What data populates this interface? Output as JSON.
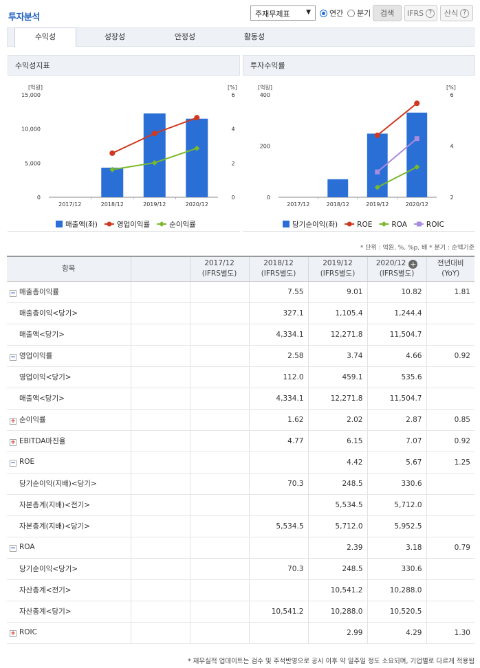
{
  "header": {
    "title": "투자분석",
    "select_value": "주재무제표",
    "radio_annual": "연간",
    "radio_quarter": "분기",
    "search_btn": "검색",
    "ifrs_btn": "IFRS",
    "formula_btn": "산식"
  },
  "tabs": [
    "수익성",
    "성장성",
    "안정성",
    "활동성"
  ],
  "chart_left_title": "수익성지표",
  "chart_right_title": "투자수익률",
  "chart_data": [
    {
      "type": "bar",
      "title": "수익성지표",
      "categories": [
        "2017/12",
        "2018/12",
        "2019/12",
        "2020/12"
      ],
      "y_left_unit": "[억원]",
      "y_right_unit": "[%]",
      "y_left_ticks": [
        "15,000",
        "10,000",
        "5,000",
        "0"
      ],
      "y_right_ticks": [
        "6",
        "4",
        "2",
        "0"
      ],
      "ylim_left": [
        0,
        15000
      ],
      "ylim_right": [
        0,
        6
      ],
      "series": [
        {
          "name": "매출액(좌)",
          "kind": "bar",
          "axis": "left",
          "color": "#2a6fd6",
          "values": [
            null,
            4334.1,
            12271.8,
            11504.7
          ]
        },
        {
          "name": "영업이익률",
          "kind": "line",
          "axis": "right",
          "color": "#d0391f",
          "values": [
            null,
            2.58,
            3.74,
            4.66
          ]
        },
        {
          "name": "순이익률",
          "kind": "line",
          "axis": "right",
          "color": "#7ab92a",
          "values": [
            null,
            1.62,
            2.02,
            2.87
          ]
        }
      ],
      "legend": "bottom"
    },
    {
      "type": "bar",
      "title": "투자수익률",
      "categories": [
        "2017/12",
        "2018/12",
        "2019/12",
        "2020/12"
      ],
      "y_left_unit": "[억원]",
      "y_right_unit": "[%]",
      "y_left_ticks": [
        "400",
        "200",
        "0"
      ],
      "y_right_ticks": [
        "6",
        "4",
        "2"
      ],
      "ylim_left": [
        0,
        400
      ],
      "ylim_right": [
        2,
        6
      ],
      "series": [
        {
          "name": "당기순이익(좌)",
          "kind": "bar",
          "axis": "left",
          "color": "#2a6fd6",
          "values": [
            null,
            70.3,
            248.5,
            330.6
          ]
        },
        {
          "name": "ROE",
          "kind": "line",
          "axis": "right",
          "color": "#d0391f",
          "values": [
            null,
            null,
            4.42,
            5.67
          ]
        },
        {
          "name": "ROA",
          "kind": "line",
          "axis": "right",
          "color": "#7ab92a",
          "values": [
            null,
            null,
            2.39,
            3.18
          ]
        },
        {
          "name": "ROIC",
          "kind": "line",
          "axis": "right",
          "color": "#a98be0",
          "values": [
            null,
            null,
            2.99,
            4.29
          ]
        }
      ],
      "legend": "bottom"
    }
  ],
  "unit_note": "* 단위 : 억원, %, %p, 배   * 분기 : 순액기준",
  "table": {
    "headers": [
      "항목",
      "",
      "2017/12\n(IFRS별도)",
      "2018/12\n(IFRS별도)",
      "2019/12\n(IFRS별도)",
      "2020/12\n(IFRS별도)",
      "전년대비\n(YoY)"
    ],
    "rows": [
      {
        "label": "매출총이익률",
        "toggle": "minus",
        "sub": false,
        "vals": [
          "",
          "",
          "7.55",
          "9.01",
          "10.82",
          "1.81"
        ]
      },
      {
        "label": "매출총이익<당기>",
        "toggle": "",
        "sub": true,
        "vals": [
          "",
          "",
          "327.1",
          "1,105.4",
          "1,244.4",
          ""
        ]
      },
      {
        "label": "매출액<당기>",
        "toggle": "",
        "sub": true,
        "vals": [
          "",
          "",
          "4,334.1",
          "12,271.8",
          "11,504.7",
          ""
        ]
      },
      {
        "label": "영업이익률",
        "toggle": "minus",
        "sub": false,
        "vals": [
          "",
          "",
          "2.58",
          "3.74",
          "4.66",
          "0.92"
        ]
      },
      {
        "label": "영업이익<당기>",
        "toggle": "",
        "sub": true,
        "vals": [
          "",
          "",
          "112.0",
          "459.1",
          "535.6",
          ""
        ]
      },
      {
        "label": "매출액<당기>",
        "toggle": "",
        "sub": true,
        "vals": [
          "",
          "",
          "4,334.1",
          "12,271.8",
          "11,504.7",
          ""
        ]
      },
      {
        "label": "순이익률",
        "toggle": "plus",
        "sub": false,
        "vals": [
          "",
          "",
          "1.62",
          "2.02",
          "2.87",
          "0.85"
        ]
      },
      {
        "label": "EBITDA마진율",
        "toggle": "plus",
        "sub": false,
        "vals": [
          "",
          "",
          "4.77",
          "6.15",
          "7.07",
          "0.92"
        ]
      },
      {
        "label": "ROE",
        "toggle": "minus",
        "sub": false,
        "vals": [
          "",
          "",
          "",
          "4.42",
          "5.67",
          "1.25"
        ]
      },
      {
        "label": "당기순이익(지배)<당기>",
        "toggle": "",
        "sub": true,
        "vals": [
          "",
          "",
          "70.3",
          "248.5",
          "330.6",
          ""
        ]
      },
      {
        "label": "자본총계(지배)<전기>",
        "toggle": "",
        "sub": true,
        "vals": [
          "",
          "",
          "",
          "5,534.5",
          "5,712.0",
          ""
        ]
      },
      {
        "label": "자본총계(지배)<당기>",
        "toggle": "",
        "sub": true,
        "vals": [
          "",
          "",
          "5,534.5",
          "5,712.0",
          "5,952.5",
          ""
        ]
      },
      {
        "label": "ROA",
        "toggle": "minus",
        "sub": false,
        "vals": [
          "",
          "",
          "",
          "2.39",
          "3.18",
          "0.79"
        ]
      },
      {
        "label": "당기순이익<당기>",
        "toggle": "",
        "sub": true,
        "vals": [
          "",
          "",
          "70.3",
          "248.5",
          "330.6",
          ""
        ]
      },
      {
        "label": "자산총계<전기>",
        "toggle": "",
        "sub": true,
        "vals": [
          "",
          "",
          "",
          "10,541.2",
          "10,288.0",
          ""
        ]
      },
      {
        "label": "자산총계<당기>",
        "toggle": "",
        "sub": true,
        "vals": [
          "",
          "",
          "10,541.2",
          "10,288.0",
          "10,520.5",
          ""
        ]
      },
      {
        "label": "ROIC",
        "toggle": "plus",
        "sub": false,
        "vals": [
          "",
          "",
          "",
          "2.99",
          "4.29",
          "1.30"
        ]
      }
    ]
  },
  "footnote": "* 재무실적 업데이트는 검수 및 주석반영으로 공시 이후 약 일주일 정도 소요되며, 기업별로 다르게 적용됨"
}
